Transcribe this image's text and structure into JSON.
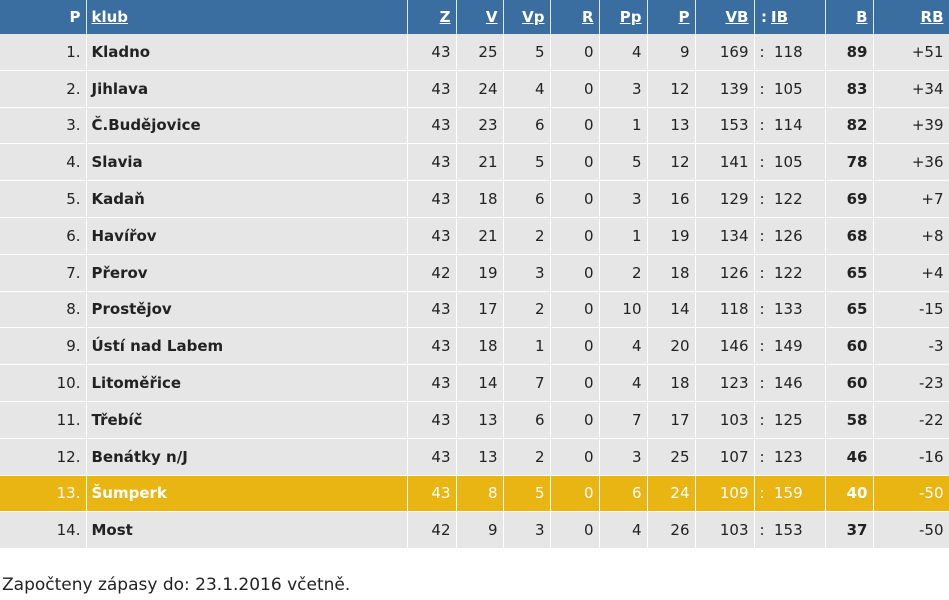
{
  "headers": {
    "pos": "P",
    "club": "klub",
    "z": "Z",
    "v": "V",
    "vp": "Vp",
    "r": "R",
    "pp": "Pp",
    "p": "P",
    "vb": "VB",
    "colon": ":",
    "ib": "IB",
    "b": "B",
    "rb": "RB"
  },
  "rows": [
    {
      "pos": "1.",
      "club": "Kladno",
      "z": "43",
      "v": "25",
      "vp": "5",
      "r": "0",
      "pp": "4",
      "p": "9",
      "vb": "169",
      "colon": ":",
      "ib": "118",
      "b": "89",
      "rb": "+51"
    },
    {
      "pos": "2.",
      "club": "Jihlava",
      "z": "43",
      "v": "24",
      "vp": "4",
      "r": "0",
      "pp": "3",
      "p": "12",
      "vb": "139",
      "colon": ":",
      "ib": "105",
      "b": "83",
      "rb": "+34"
    },
    {
      "pos": "3.",
      "club": "Č.Budějovice",
      "z": "43",
      "v": "23",
      "vp": "6",
      "r": "0",
      "pp": "1",
      "p": "13",
      "vb": "153",
      "colon": ":",
      "ib": "114",
      "b": "82",
      "rb": "+39"
    },
    {
      "pos": "4.",
      "club": "Slavia",
      "z": "43",
      "v": "21",
      "vp": "5",
      "r": "0",
      "pp": "5",
      "p": "12",
      "vb": "141",
      "colon": ":",
      "ib": "105",
      "b": "78",
      "rb": "+36"
    },
    {
      "pos": "5.",
      "club": "Kadaň",
      "z": "43",
      "v": "18",
      "vp": "6",
      "r": "0",
      "pp": "3",
      "p": "16",
      "vb": "129",
      "colon": ":",
      "ib": "122",
      "b": "69",
      "rb": "+7"
    },
    {
      "pos": "6.",
      "club": "Havířov",
      "z": "43",
      "v": "21",
      "vp": "2",
      "r": "0",
      "pp": "1",
      "p": "19",
      "vb": "134",
      "colon": ":",
      "ib": "126",
      "b": "68",
      "rb": "+8"
    },
    {
      "pos": "7.",
      "club": "Přerov",
      "z": "42",
      "v": "19",
      "vp": "3",
      "r": "0",
      "pp": "2",
      "p": "18",
      "vb": "126",
      "colon": ":",
      "ib": "122",
      "b": "65",
      "rb": "+4"
    },
    {
      "pos": "8.",
      "club": "Prostějov",
      "z": "43",
      "v": "17",
      "vp": "2",
      "r": "0",
      "pp": "10",
      "p": "14",
      "vb": "118",
      "colon": ":",
      "ib": "133",
      "b": "65",
      "rb": "-15"
    },
    {
      "pos": "9.",
      "club": "Ústí nad Labem",
      "z": "43",
      "v": "18",
      "vp": "1",
      "r": "0",
      "pp": "4",
      "p": "20",
      "vb": "146",
      "colon": ":",
      "ib": "149",
      "b": "60",
      "rb": "-3"
    },
    {
      "pos": "10.",
      "club": "Litoměřice",
      "z": "43",
      "v": "14",
      "vp": "7",
      "r": "0",
      "pp": "4",
      "p": "18",
      "vb": "123",
      "colon": ":",
      "ib": "146",
      "b": "60",
      "rb": "-23"
    },
    {
      "pos": "11.",
      "club": "Třebíč",
      "z": "43",
      "v": "13",
      "vp": "6",
      "r": "0",
      "pp": "7",
      "p": "17",
      "vb": "103",
      "colon": ":",
      "ib": "125",
      "b": "58",
      "rb": "-22"
    },
    {
      "pos": "12.",
      "club": "Benátky n/J",
      "z": "43",
      "v": "13",
      "vp": "2",
      "r": "0",
      "pp": "3",
      "p": "25",
      "vb": "107",
      "colon": ":",
      "ib": "123",
      "b": "46",
      "rb": "-16"
    },
    {
      "pos": "13.",
      "club": "Šumperk",
      "z": "43",
      "v": "8",
      "vp": "5",
      "r": "0",
      "pp": "6",
      "p": "24",
      "vb": "109",
      "colon": ":",
      "ib": "159",
      "b": "40",
      "rb": "-50",
      "highlight": true
    },
    {
      "pos": "14.",
      "club": "Most",
      "z": "42",
      "v": "9",
      "vp": "3",
      "r": "0",
      "pp": "4",
      "p": "26",
      "vb": "103",
      "colon": ":",
      "ib": "153",
      "b": "37",
      "rb": "-50"
    }
  ],
  "footer_text": "Započteny zápasy do: 23.1.2016 včetně.",
  "colors": {
    "header_bg": "#3a6da0",
    "row_bg": "#e6e6e6",
    "highlight_bg": "#e8b512"
  }
}
